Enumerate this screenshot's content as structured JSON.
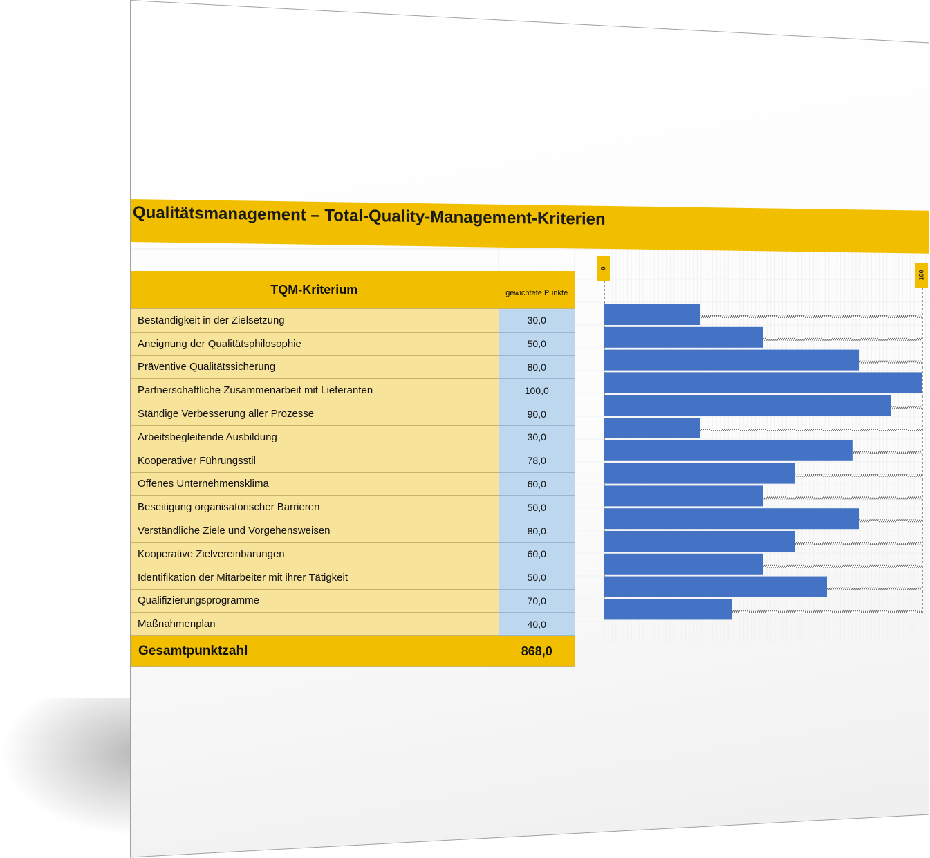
{
  "title": "Qualitätsmanagement – Total-Quality-Management-Kriterien",
  "table": {
    "header_criterion": "TQM-Kriterium",
    "header_points": "gewichtete Punkte",
    "rows": [
      {
        "label": "Beständigkeit in der Zielsetzung",
        "value": "30,0"
      },
      {
        "label": "Aneignung der Qualitätsphilosophie",
        "value": "50,0"
      },
      {
        "label": "Präventive Qualitätssicherung",
        "value": "80,0"
      },
      {
        "label": "Partnerschaftliche Zusammenarbeit mit Lieferanten",
        "value": "100,0"
      },
      {
        "label": "Ständige Verbesserung aller Prozesse",
        "value": "90,0"
      },
      {
        "label": "Arbeitsbegleitende Ausbildung",
        "value": "30,0"
      },
      {
        "label": "Kooperativer Führungsstil",
        "value": "78,0"
      },
      {
        "label": "Offenes Unternehmensklima",
        "value": "60,0"
      },
      {
        "label": "Beseitigung organisatorischer Barrieren",
        "value": "50,0"
      },
      {
        "label": "Verständliche Ziele und Vorgehensweisen",
        "value": "80,0"
      },
      {
        "label": "Kooperative Zielvereinbarungen",
        "value": "60,0"
      },
      {
        "label": "Identifikation der Mitarbeiter mit ihrer Tätigkeit",
        "value": "50,0"
      },
      {
        "label": "Qualifizierungsprogramme",
        "value": "70,0"
      },
      {
        "label": "Maßnahmenplan",
        "value": "40,0"
      }
    ],
    "total_label": "Gesamtpunktzahl",
    "total_value": "868,0"
  },
  "chart_data": {
    "type": "bar",
    "orientation": "horizontal",
    "categories": [
      "Beständigkeit in der Zielsetzung",
      "Aneignung der Qualitätsphilosophie",
      "Präventive Qualitätssicherung",
      "Partnerschaftliche Zusammenarbeit mit Lieferanten",
      "Ständige Verbesserung aller Prozesse",
      "Arbeitsbegleitende Ausbildung",
      "Kooperativer Führungsstil",
      "Offenes Unternehmensklima",
      "Beseitigung organisatorischer Barrieren",
      "Verständliche Ziele und Vorgehensweisen",
      "Kooperative Zielvereinbarungen",
      "Identifikation der Mitarbeiter mit ihrer Tätigkeit",
      "Qualifizierungsprogramme",
      "Maßnahmenplan"
    ],
    "values": [
      30,
      50,
      80,
      100,
      90,
      30,
      78,
      60,
      50,
      80,
      60,
      50,
      70,
      40
    ],
    "xlim": [
      0,
      100
    ],
    "tick_labels": [
      "0",
      "100"
    ],
    "bar_color": "#4472c4",
    "remainder_style": "hatched"
  },
  "colors": {
    "accent": "#f2bf00",
    "label_fill": "#f8e39b",
    "value_fill": "#bdd7ee",
    "bar": "#4472c4"
  }
}
